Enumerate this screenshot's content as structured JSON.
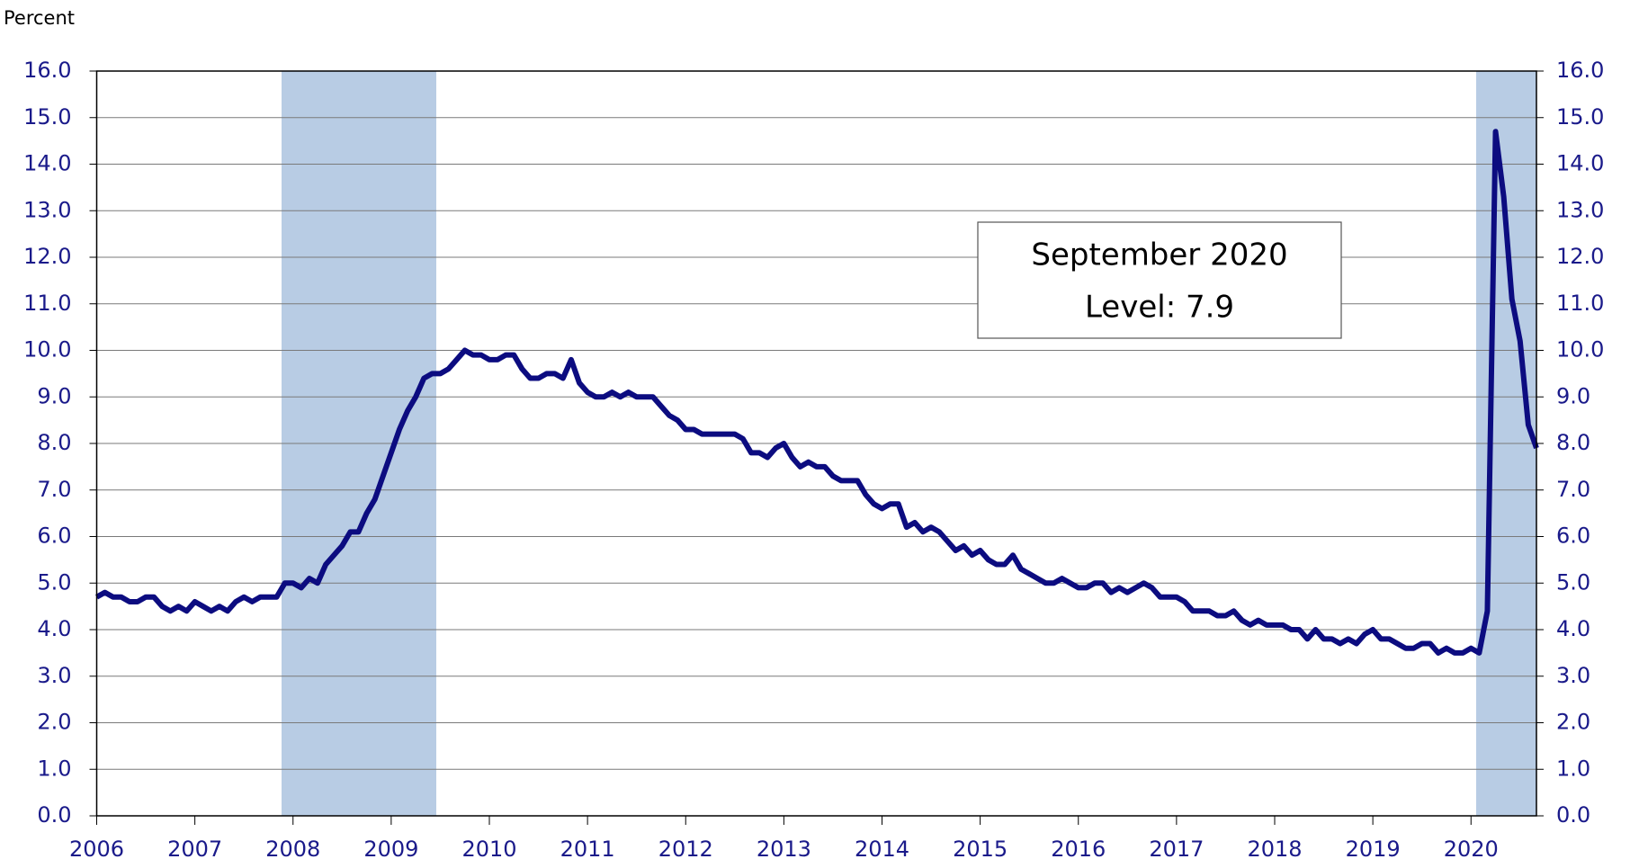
{
  "chart_data": {
    "type": "line",
    "y_axis_label": "Percent",
    "annotation": [
      "September 2020",
      "Level: 7.9"
    ],
    "categories": [
      "2006",
      null,
      null,
      null,
      null,
      null,
      null,
      null,
      null,
      null,
      null,
      null,
      "2007",
      null,
      null,
      null,
      null,
      null,
      null,
      null,
      null,
      null,
      null,
      null,
      "2008",
      null,
      null,
      null,
      null,
      null,
      null,
      null,
      null,
      null,
      null,
      null,
      "2009",
      null,
      null,
      null,
      null,
      null,
      null,
      null,
      null,
      null,
      null,
      null,
      "2010",
      null,
      null,
      null,
      null,
      null,
      null,
      null,
      null,
      null,
      null,
      null,
      "2011",
      null,
      null,
      null,
      null,
      null,
      null,
      null,
      null,
      null,
      null,
      null,
      "2012",
      null,
      null,
      null,
      null,
      null,
      null,
      null,
      null,
      null,
      null,
      null,
      "2013",
      null,
      null,
      null,
      null,
      null,
      null,
      null,
      null,
      null,
      null,
      null,
      "2014",
      null,
      null,
      null,
      null,
      null,
      null,
      null,
      null,
      null,
      null,
      null,
      "2015",
      null,
      null,
      null,
      null,
      null,
      null,
      null,
      null,
      null,
      null,
      null,
      "2016",
      null,
      null,
      null,
      null,
      null,
      null,
      null,
      null,
      null,
      null,
      null,
      "2017",
      null,
      null,
      null,
      null,
      null,
      null,
      null,
      null,
      null,
      null,
      null,
      "2018",
      null,
      null,
      null,
      null,
      null,
      null,
      null,
      null,
      null,
      null,
      null,
      "2019",
      null,
      null,
      null,
      null,
      null,
      null,
      null,
      null,
      null,
      null,
      null,
      "2020",
      null,
      null,
      null,
      null,
      null,
      null,
      null,
      null
    ],
    "series": [
      {
        "color": "#0c0c80",
        "values": [
          4.7,
          4.8,
          4.7,
          4.7,
          4.6,
          4.6,
          4.7,
          4.7,
          4.5,
          4.4,
          4.5,
          4.4,
          4.6,
          4.5,
          4.4,
          4.5,
          4.4,
          4.6,
          4.7,
          4.6,
          4.7,
          4.7,
          4.7,
          5.0,
          5.0,
          4.9,
          5.1,
          5.0,
          5.4,
          5.6,
          5.8,
          6.1,
          6.1,
          6.5,
          6.8,
          7.3,
          7.8,
          8.3,
          8.7,
          9.0,
          9.4,
          9.5,
          9.5,
          9.6,
          9.8,
          10.0,
          9.9,
          9.9,
          9.8,
          9.8,
          9.9,
          9.9,
          9.6,
          9.4,
          9.4,
          9.5,
          9.5,
          9.4,
          9.8,
          9.3,
          9.1,
          9.0,
          9.0,
          9.1,
          9.0,
          9.1,
          9.0,
          9.0,
          9.0,
          8.8,
          8.6,
          8.5,
          8.3,
          8.3,
          8.2,
          8.2,
          8.2,
          8.2,
          8.2,
          8.1,
          7.8,
          7.8,
          7.7,
          7.9,
          8.0,
          7.7,
          7.5,
          7.6,
          7.5,
          7.5,
          7.3,
          7.2,
          7.2,
          7.2,
          6.9,
          6.7,
          6.6,
          6.7,
          6.7,
          6.2,
          6.3,
          6.1,
          6.2,
          6.1,
          5.9,
          5.7,
          5.8,
          5.6,
          5.7,
          5.5,
          5.4,
          5.4,
          5.6,
          5.3,
          5.2,
          5.1,
          5.0,
          5.0,
          5.1,
          5.0,
          4.9,
          4.9,
          5.0,
          5.0,
          4.8,
          4.9,
          4.8,
          4.9,
          5.0,
          4.9,
          4.7,
          4.7,
          4.7,
          4.6,
          4.4,
          4.4,
          4.4,
          4.3,
          4.3,
          4.4,
          4.2,
          4.1,
          4.2,
          4.1,
          4.1,
          4.1,
          4.0,
          4.0,
          3.8,
          4.0,
          3.8,
          3.8,
          3.7,
          3.8,
          3.7,
          3.9,
          4.0,
          3.8,
          3.8,
          3.7,
          3.6,
          3.6,
          3.7,
          3.7,
          3.5,
          3.6,
          3.5,
          3.5,
          3.6,
          3.5,
          4.4,
          14.7,
          13.3,
          11.1,
          10.2,
          8.4,
          7.9
        ]
      }
    ],
    "ylim": [
      0,
      16
    ],
    "yticks": [
      {
        "value": 0,
        "label": "0.0"
      },
      {
        "value": 1,
        "label": "1.0"
      },
      {
        "value": 2,
        "label": "2.0"
      },
      {
        "value": 3,
        "label": "3.0"
      },
      {
        "value": 4,
        "label": "4.0"
      },
      {
        "value": 5,
        "label": "5.0"
      },
      {
        "value": 6,
        "label": "6.0"
      },
      {
        "value": 7,
        "label": "7.0"
      },
      {
        "value": 8,
        "label": "8.0"
      },
      {
        "value": 9,
        "label": "9.0"
      },
      {
        "value": 10,
        "label": "10.0"
      },
      {
        "value": 11,
        "label": "11.0"
      },
      {
        "value": 12,
        "label": "12.0"
      },
      {
        "value": 13,
        "label": "13.0"
      },
      {
        "value": 14,
        "label": "14.0"
      },
      {
        "value": 15,
        "label": "15.0"
      },
      {
        "value": 16,
        "label": "16.0"
      }
    ],
    "y2lim": [
      0,
      16
    ],
    "y2ticks": [
      {
        "value": 0,
        "label": "0.0"
      },
      {
        "value": 1,
        "label": "1.0"
      },
      {
        "value": 2,
        "label": "2.0"
      },
      {
        "value": 3,
        "label": "3.0"
      },
      {
        "value": 4,
        "label": "4.0"
      },
      {
        "value": 5,
        "label": "5.0"
      },
      {
        "value": 6,
        "label": "6.0"
      },
      {
        "value": 7,
        "label": "7.0"
      },
      {
        "value": 8,
        "label": "8.0"
      },
      {
        "value": 9,
        "label": "9.0"
      },
      {
        "value": 10,
        "label": "10.0"
      },
      {
        "value": 11,
        "label": "11.0"
      },
      {
        "value": 12,
        "label": "12.0"
      },
      {
        "value": 13,
        "label": "13.0"
      },
      {
        "value": 14,
        "label": "14.0"
      },
      {
        "value": 15,
        "label": "15.0"
      },
      {
        "value": 16,
        "label": "16.0"
      }
    ],
    "grid": true
  }
}
